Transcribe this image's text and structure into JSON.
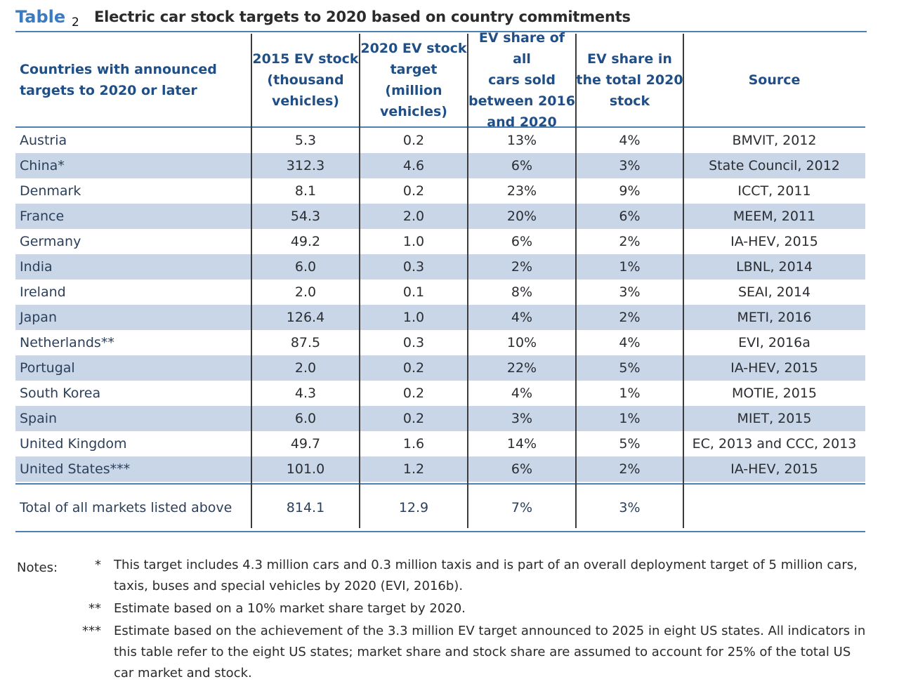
{
  "title": {
    "label": "Table",
    "number": "2",
    "text": "Electric car stock targets to 2020 based on country commitments"
  },
  "headers": {
    "country": [
      "Countries with announced",
      "targets to 2020 or later"
    ],
    "ev_stock_2015": [
      "2015 EV stock",
      "(thousand",
      "vehicles)"
    ],
    "ev_target_2020": [
      "2020 EV stock",
      "target",
      "(million",
      "vehicles)"
    ],
    "ev_share_sold": [
      "EV share of all",
      "cars sold",
      "between 2016",
      "and 2020"
    ],
    "ev_share_stock": [
      "EV share in",
      "the total 2020",
      "stock"
    ],
    "source": [
      "Source"
    ]
  },
  "rows": [
    {
      "country": "Austria",
      "stock2015": "5.3",
      "target2020": "0.2",
      "share_sold": "13%",
      "share_stock": "4%",
      "source": "BMVIT, 2012"
    },
    {
      "country": "China*",
      "stock2015": "312.3",
      "target2020": "4.6",
      "share_sold": "6%",
      "share_stock": "3%",
      "source": "State Council, 2012"
    },
    {
      "country": "Denmark",
      "stock2015": "8.1",
      "target2020": "0.2",
      "share_sold": "23%",
      "share_stock": "9%",
      "source": "ICCT, 2011"
    },
    {
      "country": "France",
      "stock2015": "54.3",
      "target2020": "2.0",
      "share_sold": "20%",
      "share_stock": "6%",
      "source": "MEEM, 2011"
    },
    {
      "country": "Germany",
      "stock2015": "49.2",
      "target2020": "1.0",
      "share_sold": "6%",
      "share_stock": "2%",
      "source": "IA-HEV, 2015"
    },
    {
      "country": "India",
      "stock2015": "6.0",
      "target2020": "0.3",
      "share_sold": "2%",
      "share_stock": "1%",
      "source": "LBNL, 2014"
    },
    {
      "country": "Ireland",
      "stock2015": "2.0",
      "target2020": "0.1",
      "share_sold": "8%",
      "share_stock": "3%",
      "source": "SEAI, 2014"
    },
    {
      "country": "Japan",
      "stock2015": "126.4",
      "target2020": "1.0",
      "share_sold": "4%",
      "share_stock": "2%",
      "source": "METI, 2016"
    },
    {
      "country": "Netherlands**",
      "stock2015": "87.5",
      "target2020": "0.3",
      "share_sold": "10%",
      "share_stock": "4%",
      "source": "EVI, 2016a"
    },
    {
      "country": "Portugal",
      "stock2015": "2.0",
      "target2020": "0.2",
      "share_sold": "22%",
      "share_stock": "5%",
      "source": "IA-HEV, 2015"
    },
    {
      "country": "South Korea",
      "stock2015": "4.3",
      "target2020": "0.2",
      "share_sold": "4%",
      "share_stock": "1%",
      "source": "MOTIE, 2015"
    },
    {
      "country": "Spain",
      "stock2015": "6.0",
      "target2020": "0.2",
      "share_sold": "3%",
      "share_stock": "1%",
      "source": "MIET, 2015"
    },
    {
      "country": "United Kingdom",
      "stock2015": "49.7",
      "target2020": "1.6",
      "share_sold": "14%",
      "share_stock": "5%",
      "source": "EC, 2013 and CCC, 2013"
    },
    {
      "country": "United States***",
      "stock2015": "101.0",
      "target2020": "1.2",
      "share_sold": "6%",
      "share_stock": "2%",
      "source": "IA-HEV, 2015"
    }
  ],
  "total": {
    "country": "Total of all markets listed above",
    "stock2015": "814.1",
    "target2020": "12.9",
    "share_sold": "7%",
    "share_stock": "3%",
    "source": ""
  },
  "notes": {
    "label": "Notes:",
    "items": [
      {
        "mark": "*",
        "text": "This target includes 4.3 million cars and 0.3 million taxis and is part of an overall deployment target of 5 million cars, taxis, buses and special vehicles by 2020 (EVI, 2016b)."
      },
      {
        "mark": "**",
        "text": "Estimate based on a 10% market share target by 2020."
      },
      {
        "mark": "***",
        "text": "Estimate based on the achievement of the 3.3 million EV target announced to 2025 in eight US states. All indicators in this table refer to the eight US states; market share and stock share are assumed to account for 25% of the total US car market and stock."
      }
    ]
  },
  "colors": {
    "title_accent": "#3a7cc2",
    "header_text": "#1f4f86",
    "row_shade": "#c9d6e7",
    "rule": "#4e7fb3"
  }
}
